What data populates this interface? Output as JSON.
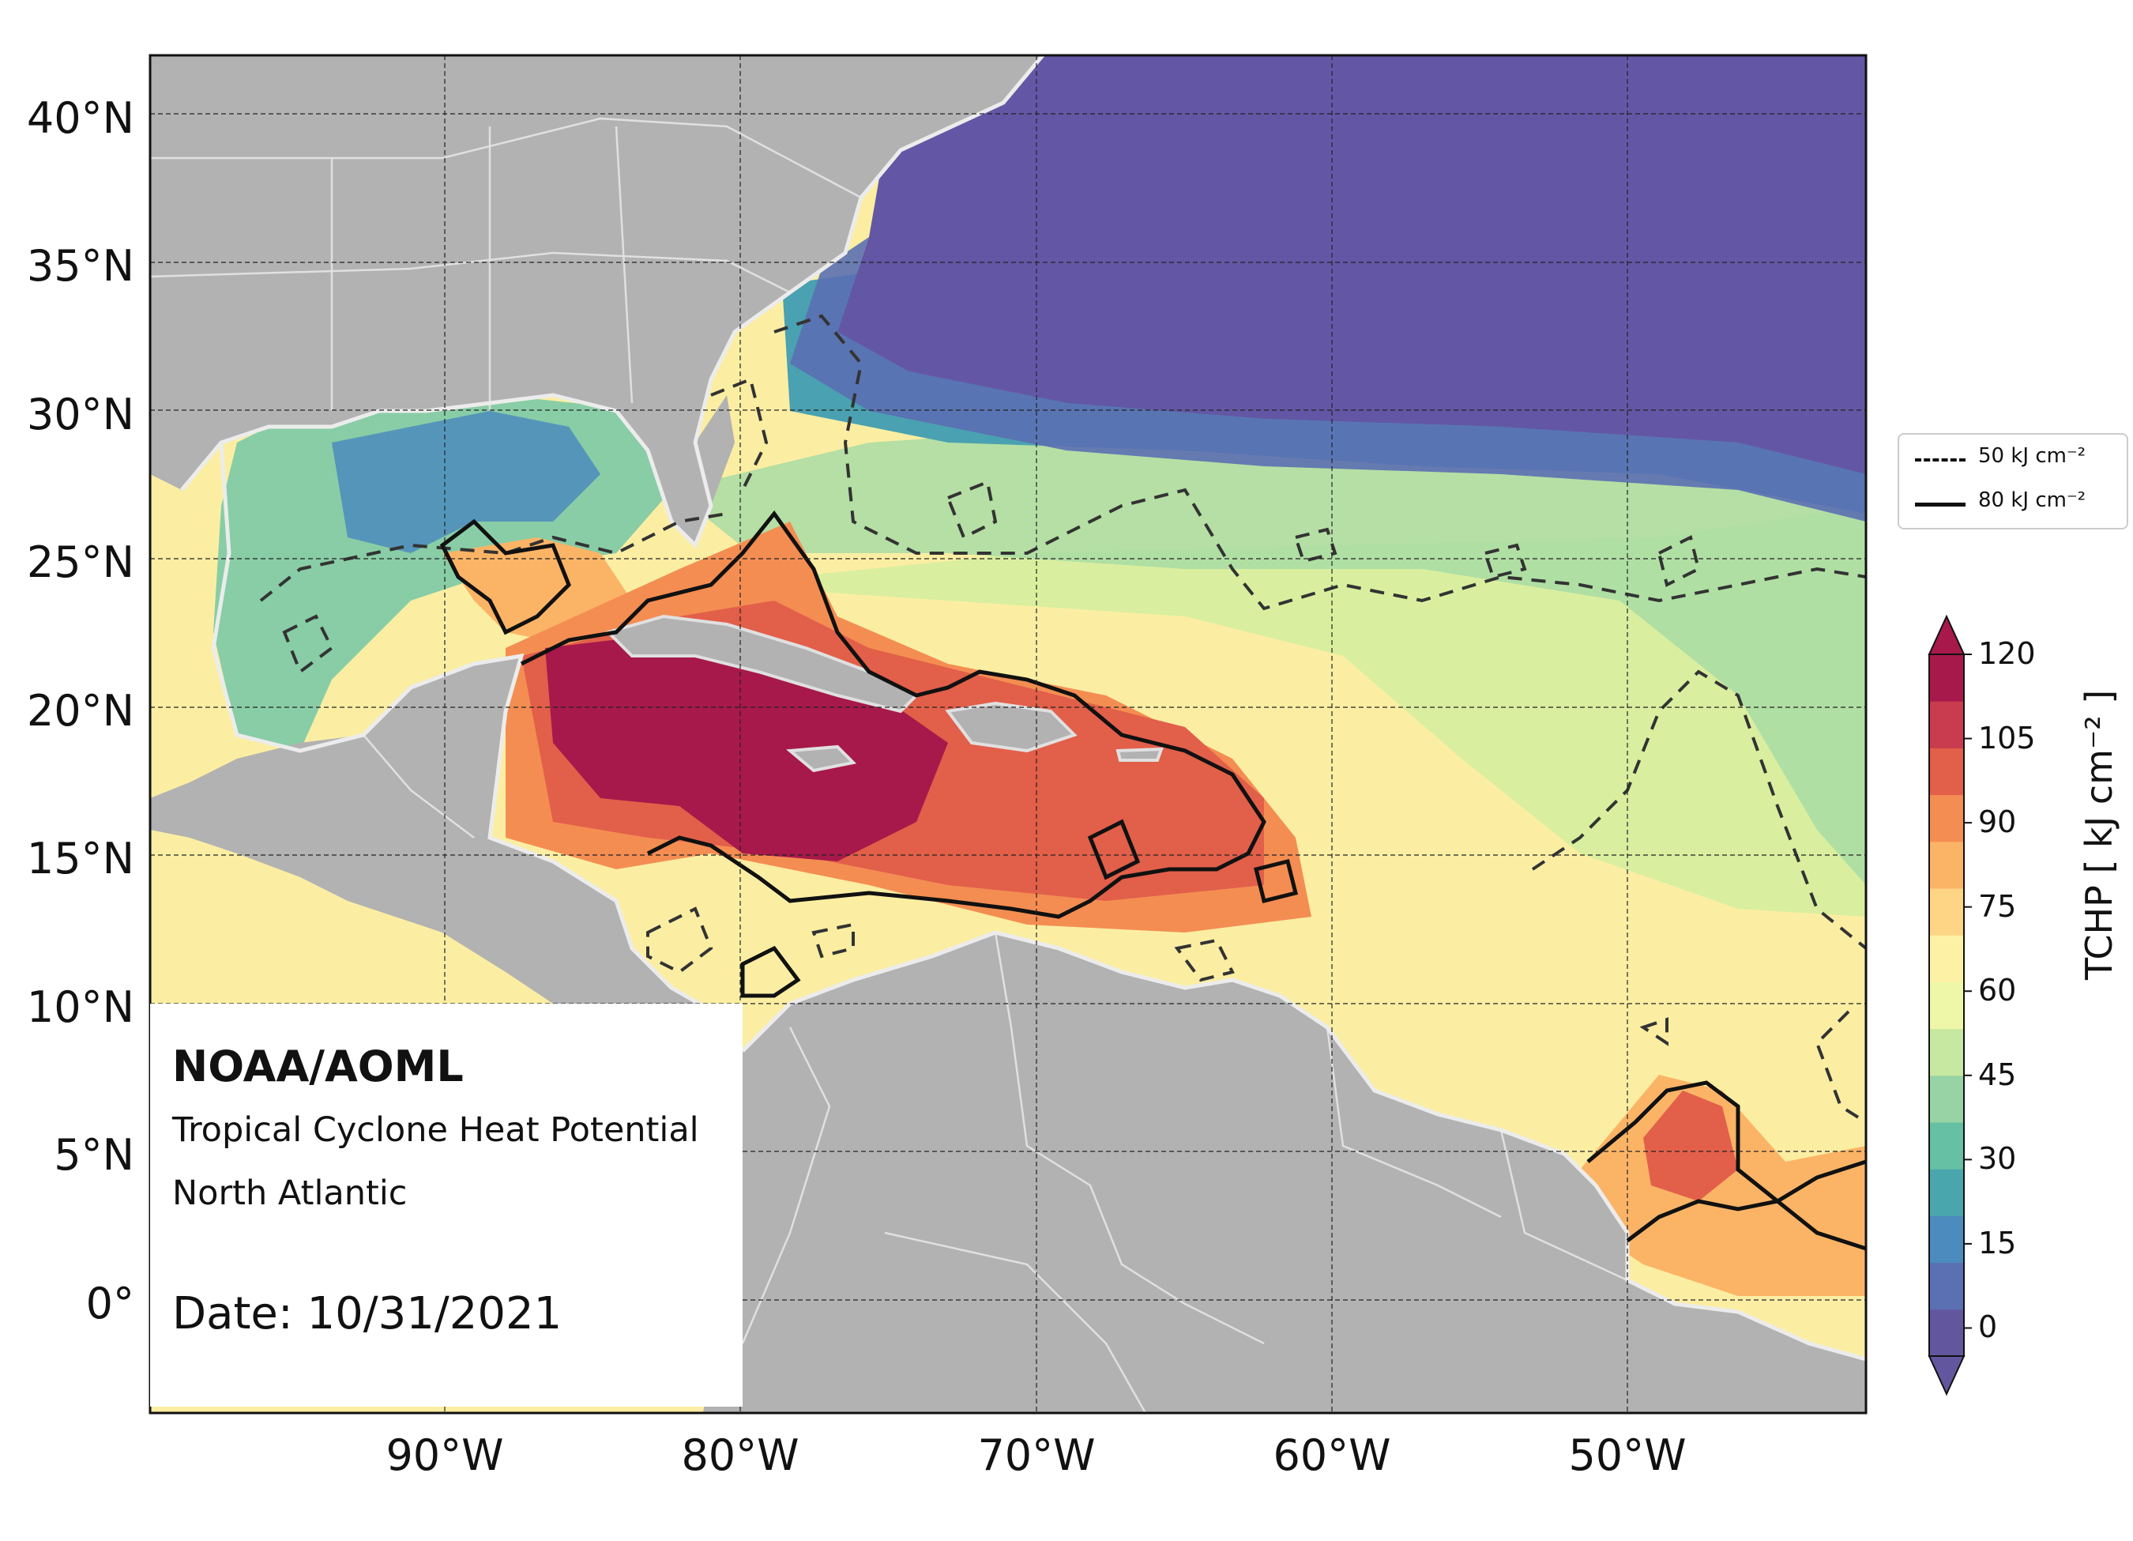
{
  "header": {
    "org": "NOAA/AOML",
    "product": "Tropical Cyclone Heat Potential",
    "region": "North Atlantic",
    "date": "Date: 10/31/2021"
  },
  "axes": {
    "lat_labels": [
      "40°N",
      "35°N",
      "30°N",
      "25°N",
      "20°N",
      "15°N",
      "10°N",
      "5°N",
      "0°"
    ],
    "lon_labels": [
      "90°W",
      "80°W",
      "70°W",
      "60°W",
      "50°W"
    ],
    "lat_range": [
      -3.8,
      42
    ],
    "lon_range": [
      -100,
      -42
    ]
  },
  "legend": {
    "item_50": "50 kJ cm⁻²",
    "item_80": "80 kJ cm⁻²"
  },
  "colorbar": {
    "title": "TCHP [ kJ cm⁻² ]",
    "ticks": [
      "0",
      "15",
      "30",
      "45",
      "60",
      "75",
      "90",
      "105",
      "120"
    ],
    "min": -5,
    "max": 120,
    "colors": [
      "#62579f",
      "#5b6fb3",
      "#4c8bbd",
      "#4aa6ad",
      "#66c0a3",
      "#97d3a4",
      "#c7e8a0",
      "#eef7a8",
      "#fdf1a6",
      "#fed585",
      "#fbb466",
      "#f48d52",
      "#e25f4a",
      "#c93b4e",
      "#a7194a"
    ]
  },
  "colors": {
    "land": "#b2b2b2",
    "coast": "#e0e0e0",
    "cold_water": "#6357a5",
    "warm_water": "#a71a4a"
  }
}
